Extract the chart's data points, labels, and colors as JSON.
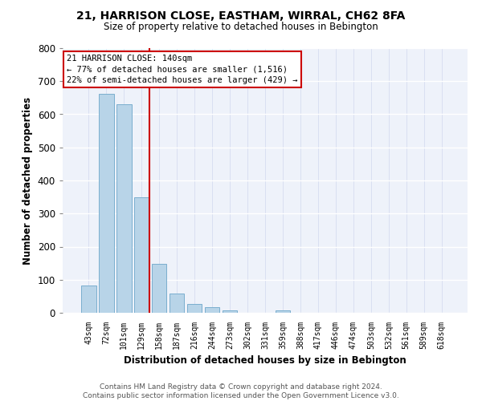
{
  "title1": "21, HARRISON CLOSE, EASTHAM, WIRRAL, CH62 8FA",
  "title2": "Size of property relative to detached houses in Bebington",
  "xlabel": "Distribution of detached houses by size in Bebington",
  "ylabel": "Number of detached properties",
  "bin_labels": [
    "43sqm",
    "72sqm",
    "101sqm",
    "129sqm",
    "158sqm",
    "187sqm",
    "216sqm",
    "244sqm",
    "273sqm",
    "302sqm",
    "331sqm",
    "359sqm",
    "388sqm",
    "417sqm",
    "446sqm",
    "474sqm",
    "503sqm",
    "532sqm",
    "561sqm",
    "589sqm",
    "618sqm"
  ],
  "bar_heights": [
    82,
    663,
    630,
    350,
    148,
    57,
    27,
    18,
    8,
    0,
    0,
    7,
    0,
    0,
    0,
    0,
    0,
    0,
    0,
    0,
    0
  ],
  "bar_color": "#b8d4e8",
  "bar_edge_color": "#7aaece",
  "vline_color": "#cc0000",
  "annotation_text": "21 HARRISON CLOSE: 140sqm\n← 77% of detached houses are smaller (1,516)\n22% of semi-detached houses are larger (429) →",
  "ylim": [
    0,
    800
  ],
  "yticks": [
    0,
    100,
    200,
    300,
    400,
    500,
    600,
    700,
    800
  ],
  "footer": "Contains HM Land Registry data © Crown copyright and database right 2024.\nContains public sector information licensed under the Open Government Licence v3.0.",
  "bg_color": "#eef2fa",
  "grid_color": "#d0d8ee"
}
